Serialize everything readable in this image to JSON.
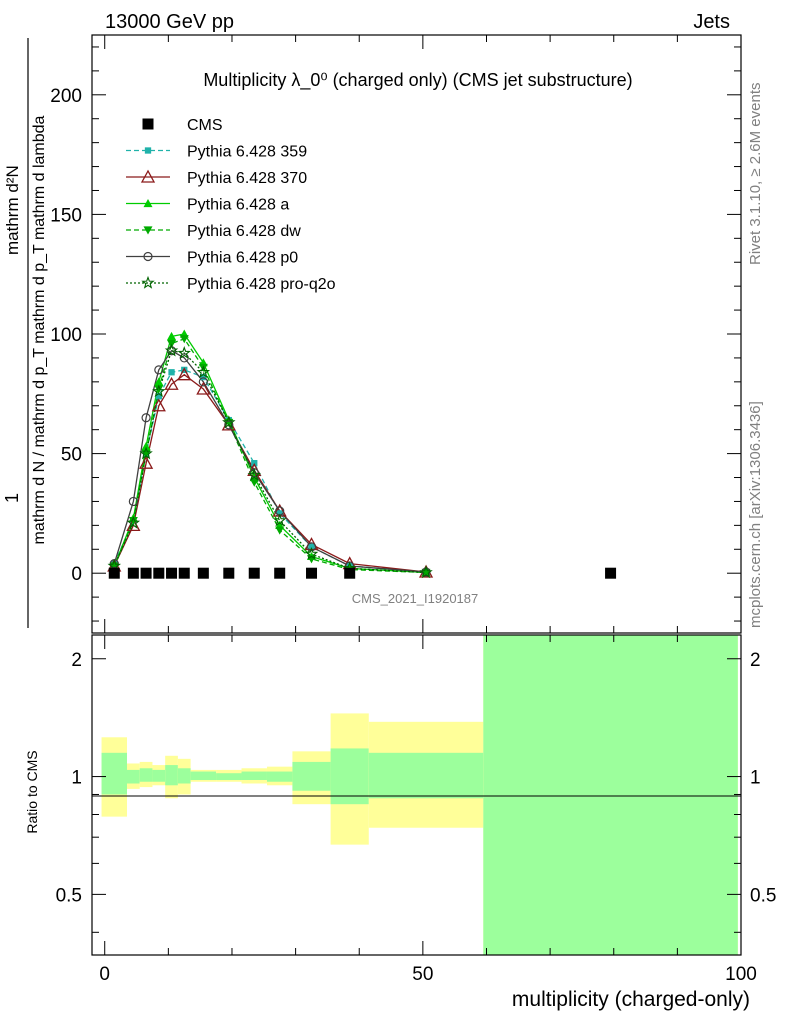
{
  "header": {
    "left": "13000 GeV pp",
    "right": "Jets"
  },
  "side": {
    "rivet": "Rivet 3.1.10, ≥ 2.6M events",
    "mcplots": "mcplots.cern.ch [arXiv:1306.3436]"
  },
  "watermark": "CMS_2021_I1920187",
  "ylabel": {
    "top": "1",
    "bottom": "mathrm d N / mathrm d p_T mathrm d p_T mathrm d lambda",
    "numer": "mathrm d²N"
  },
  "ratio_ylabel": "Ratio to CMS",
  "chart_data": {
    "type": "scatter",
    "title": "Multiplicity λ_0⁰ (charged only) (CMS jet substructure)",
    "xlabel": "multiplicity (charged-only)",
    "xlim": [
      -2,
      100
    ],
    "ylim": [
      -25,
      225
    ],
    "xticks": [
      "0",
      "50",
      "100"
    ],
    "yticks": [
      "0",
      "50",
      "100",
      "150",
      "200"
    ],
    "ratio_ylim": [
      0.35,
      2.3
    ],
    "ratio_yticks": [
      "0.5",
      "1",
      "2"
    ],
    "cms": {
      "name": "CMS",
      "x": [
        1.5,
        4.5,
        6.5,
        8.5,
        10.5,
        12.5,
        15.5,
        19.5,
        23.5,
        27.5,
        32.5,
        38.5,
        79.5
      ],
      "y": [
        0,
        0,
        0,
        0,
        0,
        0,
        0,
        0,
        0,
        0,
        0,
        0,
        0
      ]
    },
    "series": [
      {
        "name": "Pythia 6.428 359",
        "color": "#20b2aa",
        "dash": "5,3",
        "marker": "square",
        "x": [
          1.5,
          4.5,
          6.5,
          8.5,
          10.5,
          12.5,
          15.5,
          19.5,
          23.5,
          27.5,
          32.5,
          38.5,
          50.5
        ],
        "y": [
          4,
          22,
          50,
          74,
          84,
          85,
          82,
          64,
          46,
          25,
          11,
          3,
          0.5
        ]
      },
      {
        "name": "Pythia 6.428 370",
        "color": "#8b1a1a",
        "dash": "",
        "marker": "triangle-open",
        "x": [
          1.5,
          4.5,
          6.5,
          8.5,
          10.5,
          12.5,
          15.5,
          19.5,
          23.5,
          27.5,
          32.5,
          38.5,
          50.5
        ],
        "y": [
          3,
          20,
          46,
          70,
          79,
          83,
          77,
          62,
          43,
          26,
          12,
          4,
          0.5
        ]
      },
      {
        "name": "Pythia 6.428 a",
        "color": "#00cc00",
        "dash": "",
        "marker": "triangle",
        "x": [
          1.5,
          4.5,
          6.5,
          8.5,
          10.5,
          12.5,
          15.5,
          19.5,
          23.5,
          27.5,
          32.5,
          38.5,
          50.5
        ],
        "y": [
          3,
          23,
          53,
          80,
          99,
          100,
          88,
          64,
          40,
          20,
          7,
          2,
          0.3
        ]
      },
      {
        "name": "Pythia 6.428 dw",
        "color": "#00aa00",
        "dash": "5,3",
        "marker": "triangle-down",
        "x": [
          1.5,
          4.5,
          6.5,
          8.5,
          10.5,
          12.5,
          15.5,
          19.5,
          23.5,
          27.5,
          32.5,
          38.5,
          50.5
        ],
        "y": [
          3,
          22,
          50,
          77,
          96,
          98,
          86,
          63,
          38,
          18,
          6,
          1.5,
          0.3
        ]
      },
      {
        "name": "Pythia 6.428 p0",
        "color": "#404040",
        "dash": "",
        "marker": "circle-open",
        "x": [
          1.5,
          4.5,
          6.5,
          8.5,
          10.5,
          12.5,
          15.5,
          19.5,
          23.5,
          27.5,
          32.5,
          38.5,
          50.5
        ],
        "y": [
          4,
          30,
          65,
          85,
          93,
          90,
          80,
          62,
          42,
          26,
          11,
          3,
          0.5
        ]
      },
      {
        "name": "Pythia 6.428 pro-q2o",
        "color": "#006400",
        "dash": "2,2",
        "marker": "star",
        "x": [
          1.5,
          4.5,
          6.5,
          8.5,
          10.5,
          12.5,
          15.5,
          19.5,
          23.5,
          27.5,
          32.5,
          38.5,
          50.5
        ],
        "y": [
          3,
          21,
          50,
          76,
          93,
          92,
          84,
          63,
          41,
          22,
          8,
          2,
          0.3
        ]
      }
    ],
    "ratio_bands": [
      {
        "x0": -0.5,
        "x1": 3.5,
        "yellow": [
          0.79,
          1.26
        ],
        "green": [
          0.9,
          1.15
        ]
      },
      {
        "x0": 3.5,
        "x1": 5.5,
        "yellow": [
          0.93,
          1.08
        ],
        "green": [
          0.96,
          1.04
        ]
      },
      {
        "x0": 5.5,
        "x1": 7.5,
        "yellow": [
          0.94,
          1.09
        ],
        "green": [
          0.97,
          1.05
        ]
      },
      {
        "x0": 7.5,
        "x1": 9.5,
        "yellow": [
          0.95,
          1.07
        ],
        "green": [
          0.97,
          1.04
        ]
      },
      {
        "x0": 9.5,
        "x1": 11.5,
        "yellow": [
          0.88,
          1.13
        ],
        "green": [
          0.95,
          1.07
        ]
      },
      {
        "x0": 11.5,
        "x1": 13.5,
        "yellow": [
          0.9,
          1.11
        ],
        "green": [
          0.96,
          1.05
        ]
      },
      {
        "x0": 13.5,
        "x1": 17.5,
        "yellow": [
          0.97,
          1.04
        ],
        "green": [
          0.98,
          1.03
        ]
      },
      {
        "x0": 17.5,
        "x1": 21.5,
        "yellow": [
          0.97,
          1.04
        ],
        "green": [
          0.98,
          1.02
        ]
      },
      {
        "x0": 21.5,
        "x1": 25.5,
        "yellow": [
          0.96,
          1.05
        ],
        "green": [
          0.98,
          1.03
        ]
      },
      {
        "x0": 25.5,
        "x1": 29.5,
        "yellow": [
          0.95,
          1.06
        ],
        "green": [
          0.97,
          1.03
        ]
      },
      {
        "x0": 29.5,
        "x1": 35.5,
        "yellow": [
          0.85,
          1.16
        ],
        "green": [
          0.92,
          1.09
        ]
      },
      {
        "x0": 35.5,
        "x1": 41.5,
        "yellow": [
          0.67,
          1.45
        ],
        "green": [
          0.85,
          1.18
        ]
      },
      {
        "x0": 41.5,
        "x1": 59.5,
        "yellow": [
          0.74,
          1.38
        ],
        "green": [
          0.88,
          1.15
        ]
      },
      {
        "x0": 59.5,
        "x1": 99.5,
        "yellow": [
          0.35,
          2.3
        ],
        "green": [
          0.35,
          2.3
        ]
      }
    ]
  }
}
